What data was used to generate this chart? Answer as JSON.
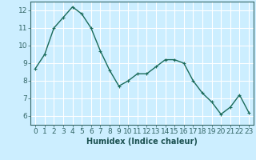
{
  "x": [
    0,
    1,
    2,
    3,
    4,
    5,
    6,
    7,
    8,
    9,
    10,
    11,
    12,
    13,
    14,
    15,
    16,
    17,
    18,
    19,
    20,
    21,
    22,
    23
  ],
  "y": [
    8.7,
    9.5,
    11.0,
    11.6,
    12.2,
    11.8,
    11.0,
    9.7,
    8.6,
    7.7,
    8.0,
    8.4,
    8.4,
    8.8,
    9.2,
    9.2,
    9.0,
    8.0,
    7.3,
    6.8,
    6.1,
    6.5,
    7.2,
    6.2
  ],
  "line_color": "#1a6b5a",
  "marker": "+",
  "bg_color": "#cceeff",
  "grid_major_color": "#ffffff",
  "grid_minor_color": "#c8e8e8",
  "xlabel": "Humidex (Indice chaleur)",
  "xlim": [
    -0.5,
    23.5
  ],
  "ylim": [
    5.5,
    12.5
  ],
  "yticks": [
    6,
    7,
    8,
    9,
    10,
    11,
    12
  ],
  "xticks": [
    0,
    1,
    2,
    3,
    4,
    5,
    6,
    7,
    8,
    9,
    10,
    11,
    12,
    13,
    14,
    15,
    16,
    17,
    18,
    19,
    20,
    21,
    22,
    23
  ],
  "xlabel_fontsize": 7,
  "tick_fontsize": 6.5,
  "line_width": 1.0,
  "marker_size": 3,
  "marker_edge_width": 0.8
}
